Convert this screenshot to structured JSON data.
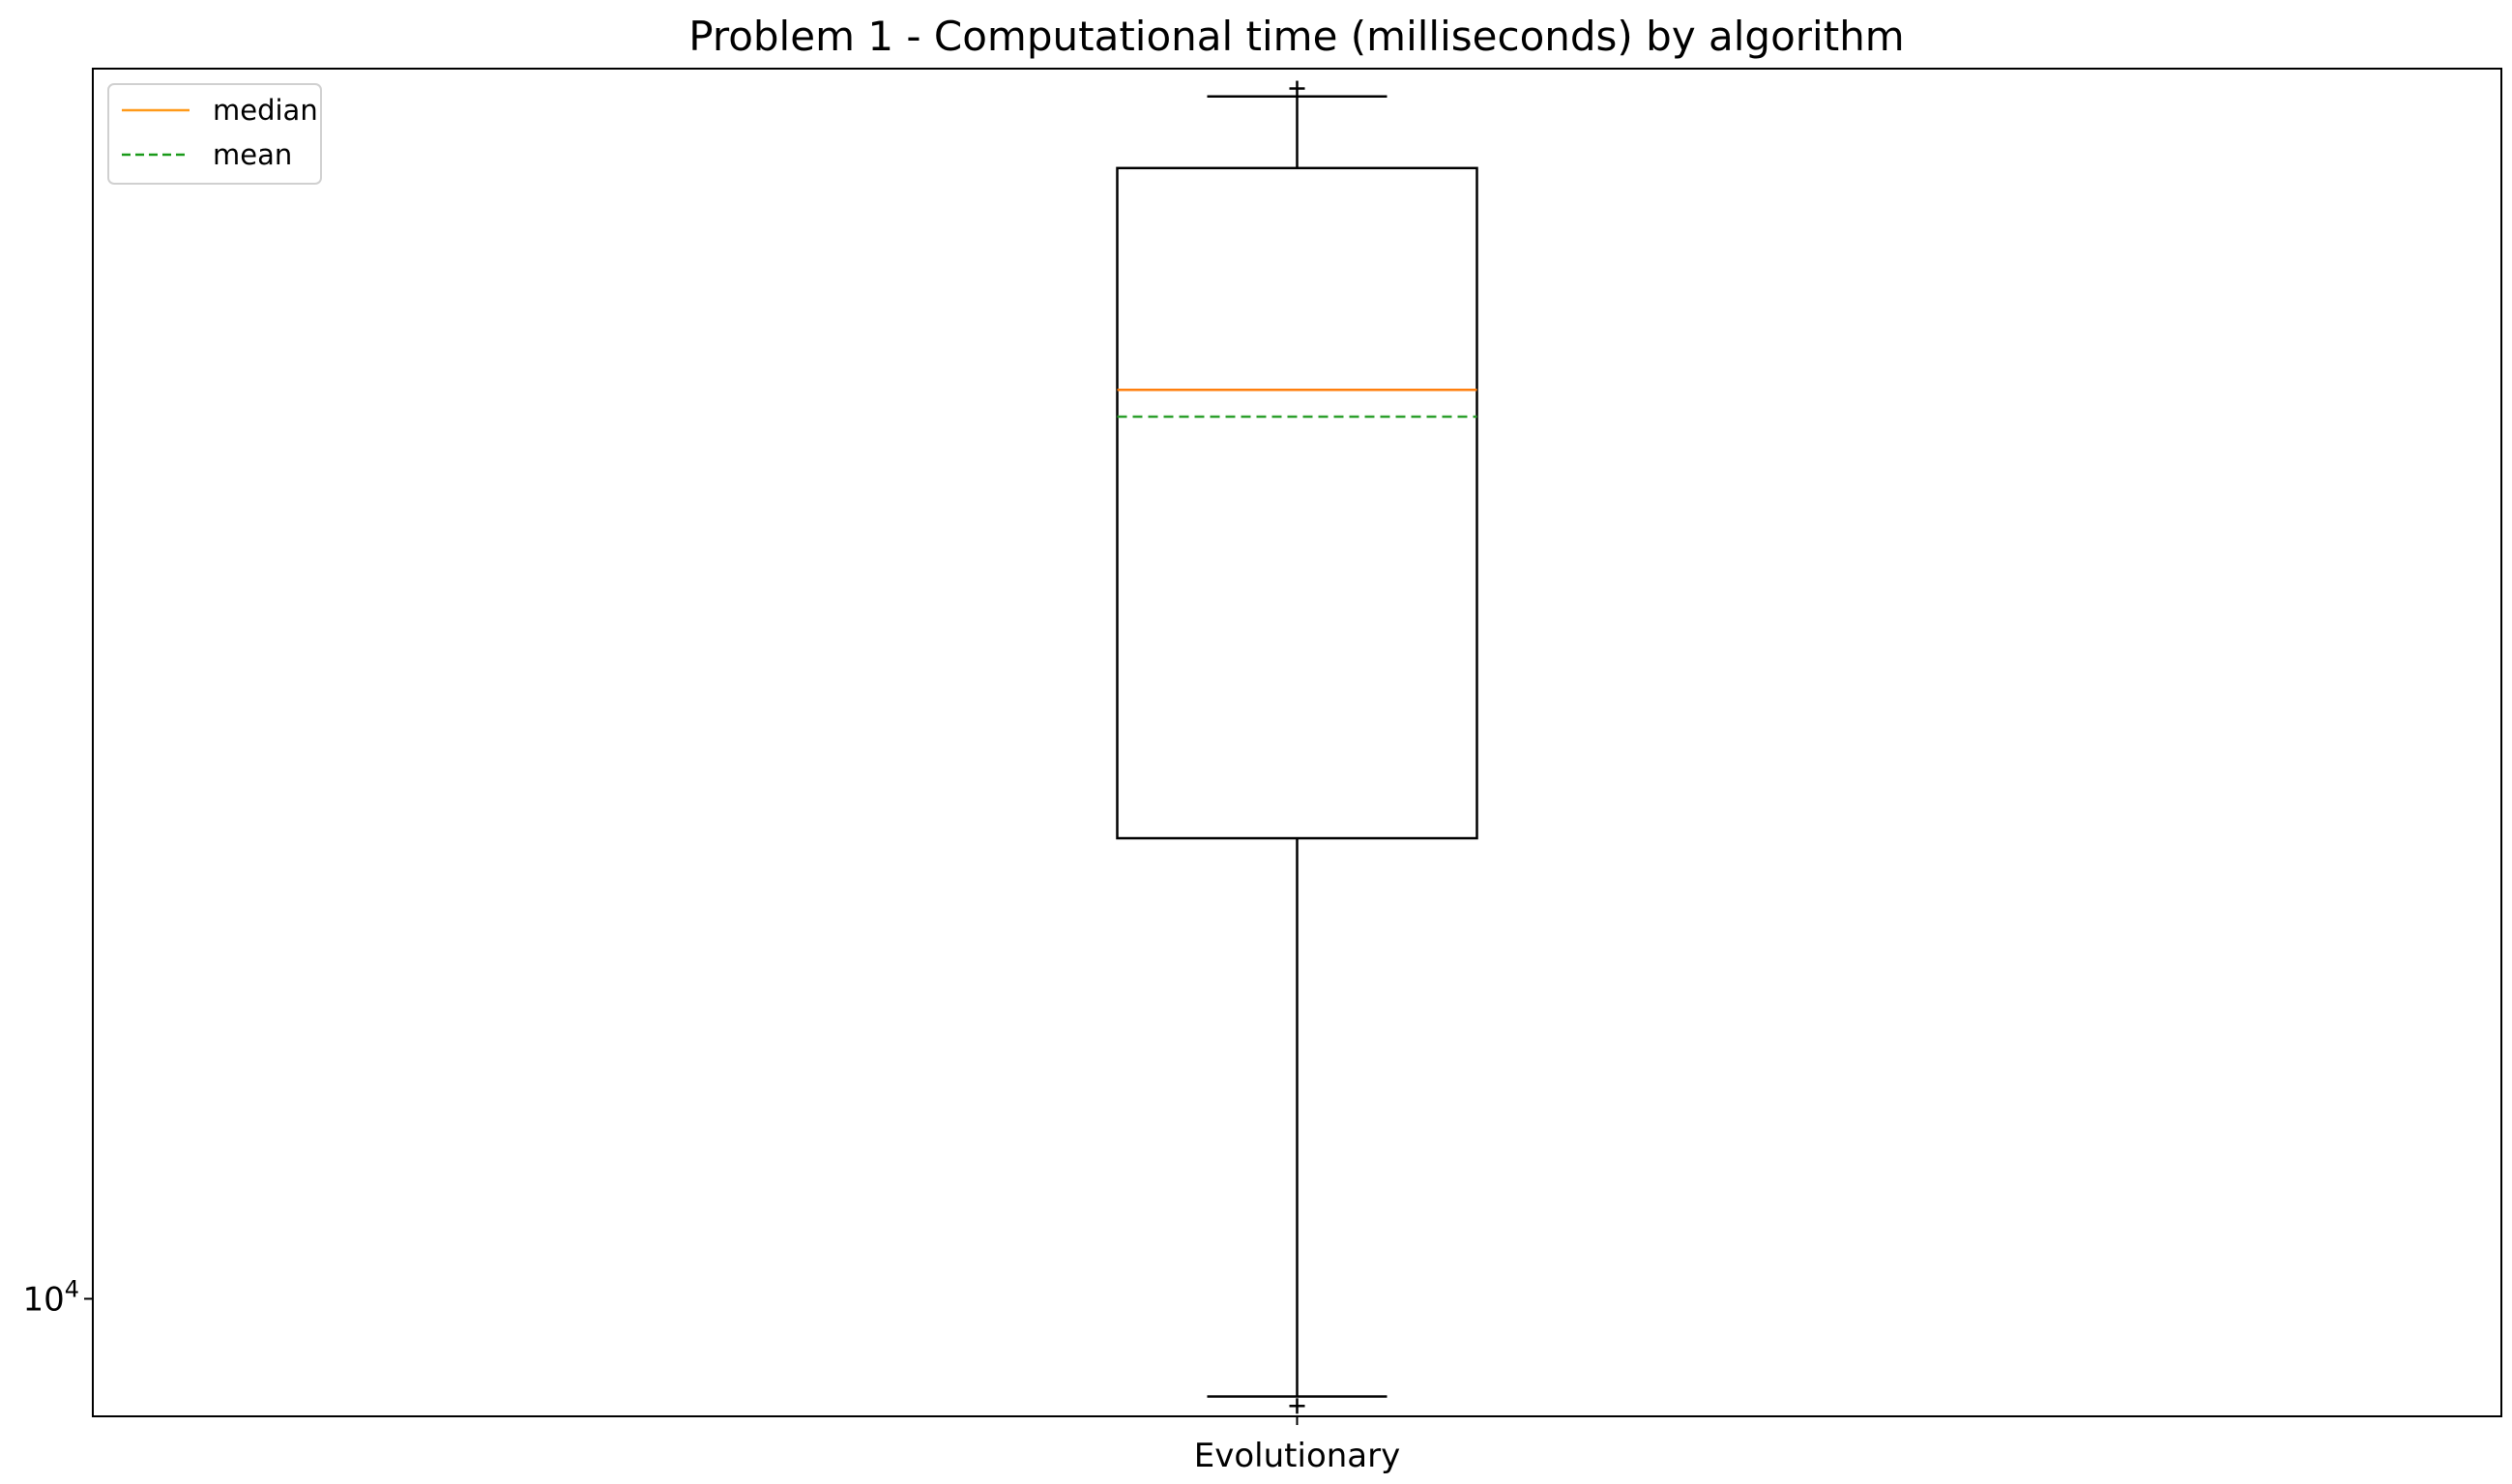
{
  "chart_data": {
    "type": "box",
    "title": "Problem 1 - Computational time (milliseconds) by algorithm",
    "xlabel": "",
    "ylabel": "",
    "yscale": "log",
    "ylim": [
      8400,
      62000
    ],
    "y_tick_labels": [
      {
        "value": 10000,
        "base": "10",
        "exponent": "4"
      }
    ],
    "categories": [
      "Evolutionary"
    ],
    "boxes": [
      {
        "category": "Evolutionary",
        "whisker_low": 8650,
        "q1": 19800,
        "median": 38500,
        "mean": 37000,
        "q3": 53500,
        "whisker_high": 59500,
        "fliers": [
          8530,
          60200
        ]
      }
    ],
    "legend": {
      "position": "upper-left",
      "entries": [
        {
          "label": "median",
          "color": "#ff9a1a",
          "style": "solid"
        },
        {
          "label": "mean",
          "color": "#1a9a1a",
          "style": "dashed"
        }
      ]
    },
    "grid": false,
    "colors": {
      "box": "#000000",
      "median": "#ff7f0e",
      "mean": "#2ca02c"
    }
  }
}
